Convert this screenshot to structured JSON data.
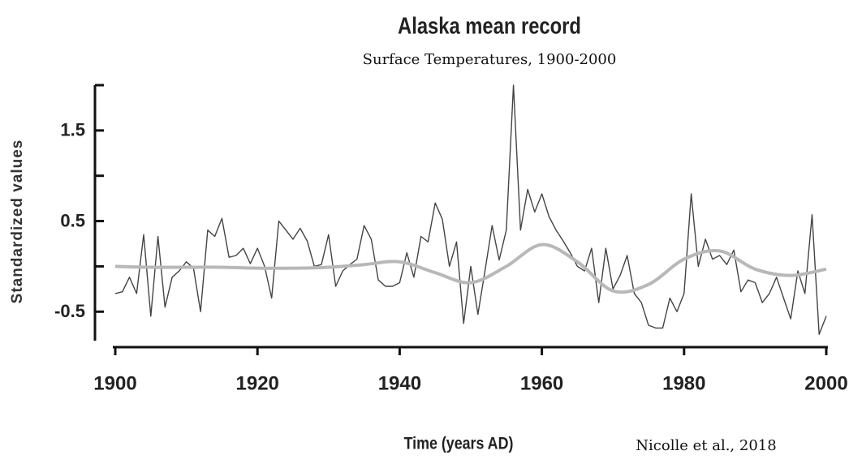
{
  "chart_data": {
    "type": "line",
    "title": "Alaska mean record",
    "subtitle": "Surface Temperatures, 1900-2000",
    "y_label": "Standardized values",
    "x_label": "Time (years AD)",
    "source": "Nicolle et al., 2018",
    "xlim": [
      1900,
      2000
    ],
    "xticks": [
      1900,
      1920,
      1940,
      1960,
      1980,
      2000
    ],
    "ylim": [
      -0.82,
      2.0
    ],
    "yticks": [
      1.5,
      0.5,
      -0.5
    ],
    "minor_yticks": [
      2,
      1,
      0
    ],
    "grid": false,
    "series": [
      {
        "color": "#444444",
        "x": [
          1900,
          1901,
          1902,
          1903,
          1904,
          1905,
          1906,
          1907,
          1908,
          1909,
          1910,
          1911,
          1912,
          1913,
          1914,
          1915,
          1916,
          1917,
          1918,
          1919,
          1920,
          1921,
          1922,
          1923,
          1924,
          1925,
          1926,
          1927,
          1928,
          1929,
          1930,
          1931,
          1932,
          1933,
          1934,
          1935,
          1936,
          1937,
          1938,
          1939,
          1940,
          1941,
          1942,
          1943,
          1944,
          1945,
          1946,
          1947,
          1948,
          1949,
          1950,
          1951,
          1952,
          1953,
          1954,
          1955,
          1956,
          1957,
          1958,
          1959,
          1960,
          1961,
          1962,
          1963,
          1964,
          1965,
          1966,
          1967,
          1968,
          1969,
          1970,
          1971,
          1972,
          1973,
          1974,
          1975,
          1976,
          1977,
          1978,
          1979,
          1980,
          1981,
          1982,
          1983,
          1984,
          1985,
          1986,
          1987,
          1988,
          1989,
          1990,
          1991,
          1992,
          1993,
          1994,
          1995,
          1996,
          1997,
          1998,
          1999,
          2000
        ],
        "values": [
          -0.3,
          -0.28,
          -0.12,
          -0.3,
          0.35,
          -0.55,
          0.33,
          -0.45,
          -0.12,
          -0.05,
          0.05,
          -0.02,
          -0.5,
          0.4,
          0.33,
          0.53,
          0.1,
          0.12,
          0.2,
          0.03,
          0.2,
          0.0,
          -0.35,
          0.5,
          0.4,
          0.3,
          0.42,
          0.28,
          0.0,
          0.02,
          0.35,
          -0.22,
          -0.05,
          0.02,
          0.08,
          0.45,
          0.3,
          -0.15,
          -0.22,
          -0.22,
          -0.18,
          0.15,
          -0.12,
          0.33,
          0.27,
          0.7,
          0.52,
          0.0,
          0.27,
          -0.63,
          0.0,
          -0.53,
          -0.05,
          0.45,
          0.07,
          0.4,
          2.0,
          0.4,
          0.85,
          0.6,
          0.8,
          0.55,
          0.4,
          0.28,
          0.15,
          0.0,
          -0.05,
          0.2,
          -0.4,
          0.2,
          -0.25,
          -0.1,
          0.12,
          -0.3,
          -0.4,
          -0.65,
          -0.68,
          -0.68,
          -0.35,
          -0.5,
          -0.3,
          0.8,
          0.0,
          0.3,
          0.08,
          0.12,
          0.02,
          0.18,
          -0.28,
          -0.15,
          -0.18,
          -0.4,
          -0.3,
          -0.12,
          -0.35,
          -0.58,
          -0.05,
          -0.3,
          0.57,
          -0.75,
          -0.55
        ]
      },
      {
        "color": "#b8b8b8",
        "x": [
          1900,
          1905,
          1910,
          1915,
          1920,
          1925,
          1930,
          1935,
          1940,
          1945,
          1950,
          1955,
          1960,
          1965,
          1970,
          1975,
          1980,
          1985,
          1990,
          1995,
          2000
        ],
        "values": [
          0,
          -0.01,
          -0.01,
          -0.01,
          -0.02,
          -0.02,
          -0.01,
          0.02,
          0.05,
          -0.07,
          -0.18,
          0.0,
          0.24,
          0.05,
          -0.27,
          -0.2,
          0.08,
          0.17,
          -0.03,
          -0.1,
          -0.03
        ]
      }
    ]
  }
}
